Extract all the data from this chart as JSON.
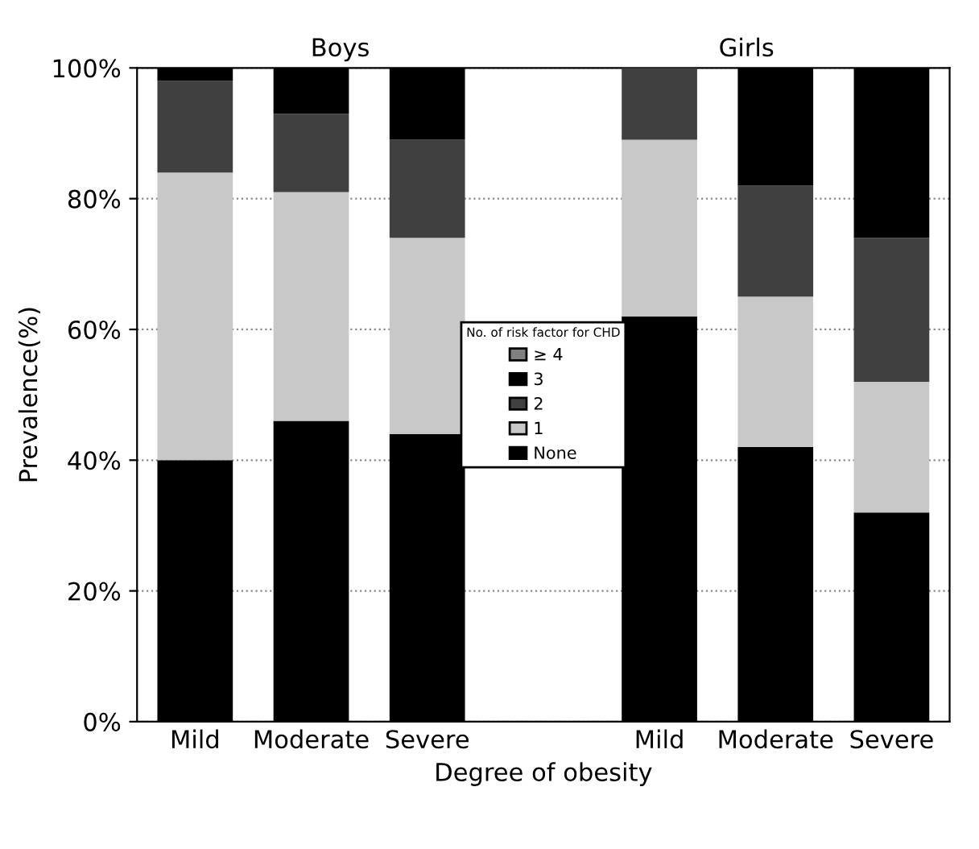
{
  "chart_data": {
    "type": "bar",
    "stacked": true,
    "xlabel": "Degree of obesity",
    "ylabel": "Prevalence(%)",
    "legend_title": "No. of risk factor for CHD",
    "legend": "center",
    "annotations": [
      "Boys",
      "Girls"
    ],
    "categories": [
      "Mild",
      "Moderate",
      "Severe",
      null,
      "Mild",
      "Moderate",
      "Severe"
    ],
    "series": [
      {
        "name": "None",
        "color": "#000000",
        "values": [
          40,
          46,
          44,
          null,
          62,
          42,
          32
        ]
      },
      {
        "name": "1",
        "color": "#c8c8c8",
        "values": [
          44,
          35,
          30,
          null,
          27,
          23,
          20
        ]
      },
      {
        "name": "2",
        "color": "#404040",
        "values": [
          14,
          12,
          15,
          null,
          11,
          17,
          22
        ]
      },
      {
        "name": "3",
        "color": "#000000",
        "values": [
          2,
          7,
          11,
          null,
          0,
          18,
          26
        ]
      },
      {
        "name": "≥ 4",
        "color": "#808080",
        "values": [
          null,
          null,
          null,
          null,
          null,
          null,
          null
        ]
      }
    ],
    "ylim": [
      0,
      100
    ],
    "yticks": [
      {
        "value": 0,
        "label": "0%"
      },
      {
        "value": 20,
        "label": "20%"
      },
      {
        "value": 40,
        "label": "40%"
      },
      {
        "value": 60,
        "label": "60%"
      },
      {
        "value": 80,
        "label": "80%"
      },
      {
        "value": 100,
        "label": "100%"
      }
    ],
    "grid": "y"
  }
}
